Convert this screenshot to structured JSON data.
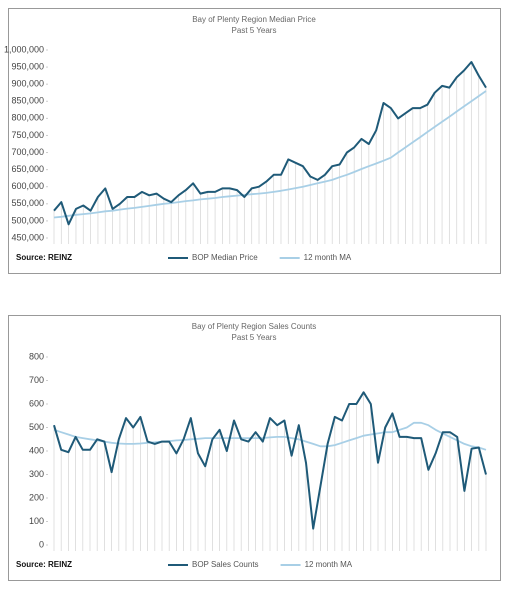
{
  "chart_data": [
    {
      "type": "line",
      "title": "Bay of Plenty Region Median Price",
      "subtitle": "Past 5 Years",
      "source": "Source: REINZ",
      "ylim": [
        450000,
        1000000
      ],
      "yticks": [
        {
          "value": 450000,
          "label": "450,000"
        },
        {
          "value": 500000,
          "label": "500,000"
        },
        {
          "value": 550000,
          "label": "550,000"
        },
        {
          "value": 600000,
          "label": "600,000"
        },
        {
          "value": 650000,
          "label": "650,000"
        },
        {
          "value": 700000,
          "label": "700,000"
        },
        {
          "value": 750000,
          "label": "750,000"
        },
        {
          "value": 800000,
          "label": "800,000"
        },
        {
          "value": 850000,
          "label": "850,000"
        },
        {
          "value": 900000,
          "label": "900,000"
        },
        {
          "value": 950000,
          "label": "950,000"
        },
        {
          "value": 1000000,
          "label": "1,000,000"
        }
      ],
      "series": [
        {
          "name": "BOP Median Price",
          "color": "#1f5a78",
          "values": [
            530000,
            555000,
            490000,
            535000,
            545000,
            530000,
            570000,
            595000,
            535000,
            550000,
            570000,
            570000,
            585000,
            575000,
            580000,
            565000,
            555000,
            575000,
            590000,
            610000,
            580000,
            585000,
            585000,
            595000,
            595000,
            590000,
            570000,
            595000,
            600000,
            615000,
            635000,
            635000,
            680000,
            670000,
            660000,
            630000,
            620000,
            635000,
            660000,
            665000,
            700000,
            715000,
            740000,
            725000,
            765000,
            845000,
            830000,
            800000,
            815000,
            830000,
            830000,
            840000,
            875000,
            895000,
            890000,
            920000,
            940000,
            965000,
            925000,
            890000
          ]
        },
        {
          "name": "12 month MA",
          "color": "#a8cfe6",
          "values": [
            510000,
            512000,
            515000,
            518000,
            520000,
            522000,
            525000,
            528000,
            530000,
            533000,
            536000,
            538000,
            541000,
            544000,
            547000,
            550000,
            552000,
            555000,
            558000,
            560000,
            563000,
            565000,
            567000,
            570000,
            572000,
            574000,
            576000,
            578000,
            580000,
            582000,
            585000,
            588000,
            592000,
            596000,
            600000,
            605000,
            610000,
            615000,
            620000,
            628000,
            635000,
            643000,
            652000,
            660000,
            668000,
            676000,
            685000,
            700000,
            715000,
            730000,
            745000,
            760000,
            775000,
            790000,
            805000,
            820000,
            835000,
            850000,
            865000,
            880000
          ]
        }
      ]
    },
    {
      "type": "line",
      "title": "Bay of Plenty Region Sales Counts",
      "subtitle": "Past 5 Years",
      "source": "Source: REINZ",
      "ylim": [
        0,
        800
      ],
      "yticks": [
        0,
        100,
        200,
        300,
        400,
        500,
        600,
        700,
        800
      ],
      "series": [
        {
          "name": "BOP Sales Counts",
          "color": "#1f5a78",
          "values": [
            510,
            405,
            395,
            460,
            405,
            405,
            450,
            440,
            310,
            450,
            540,
            500,
            545,
            440,
            430,
            440,
            440,
            390,
            450,
            540,
            390,
            335,
            450,
            490,
            400,
            530,
            450,
            440,
            480,
            440,
            540,
            510,
            530,
            380,
            510,
            350,
            70,
            250,
            430,
            545,
            530,
            600,
            600,
            650,
            600,
            350,
            500,
            560,
            460,
            460,
            455,
            455,
            320,
            390,
            480,
            480,
            460,
            230,
            410,
            415,
            300
          ]
        },
        {
          "name": "12 month MA",
          "color": "#a8cfe6",
          "values": [
            490,
            480,
            470,
            460,
            455,
            450,
            445,
            440,
            435,
            432,
            430,
            430,
            432,
            435,
            437,
            440,
            442,
            445,
            447,
            450,
            452,
            455,
            455,
            455,
            455,
            455,
            455,
            455,
            455,
            455,
            458,
            460,
            460,
            455,
            450,
            440,
            430,
            420,
            420,
            425,
            435,
            445,
            455,
            465,
            470,
            475,
            480,
            480,
            490,
            500,
            520,
            520,
            510,
            490,
            475,
            460,
            445,
            430,
            420,
            415,
            405
          ]
        }
      ]
    }
  ]
}
